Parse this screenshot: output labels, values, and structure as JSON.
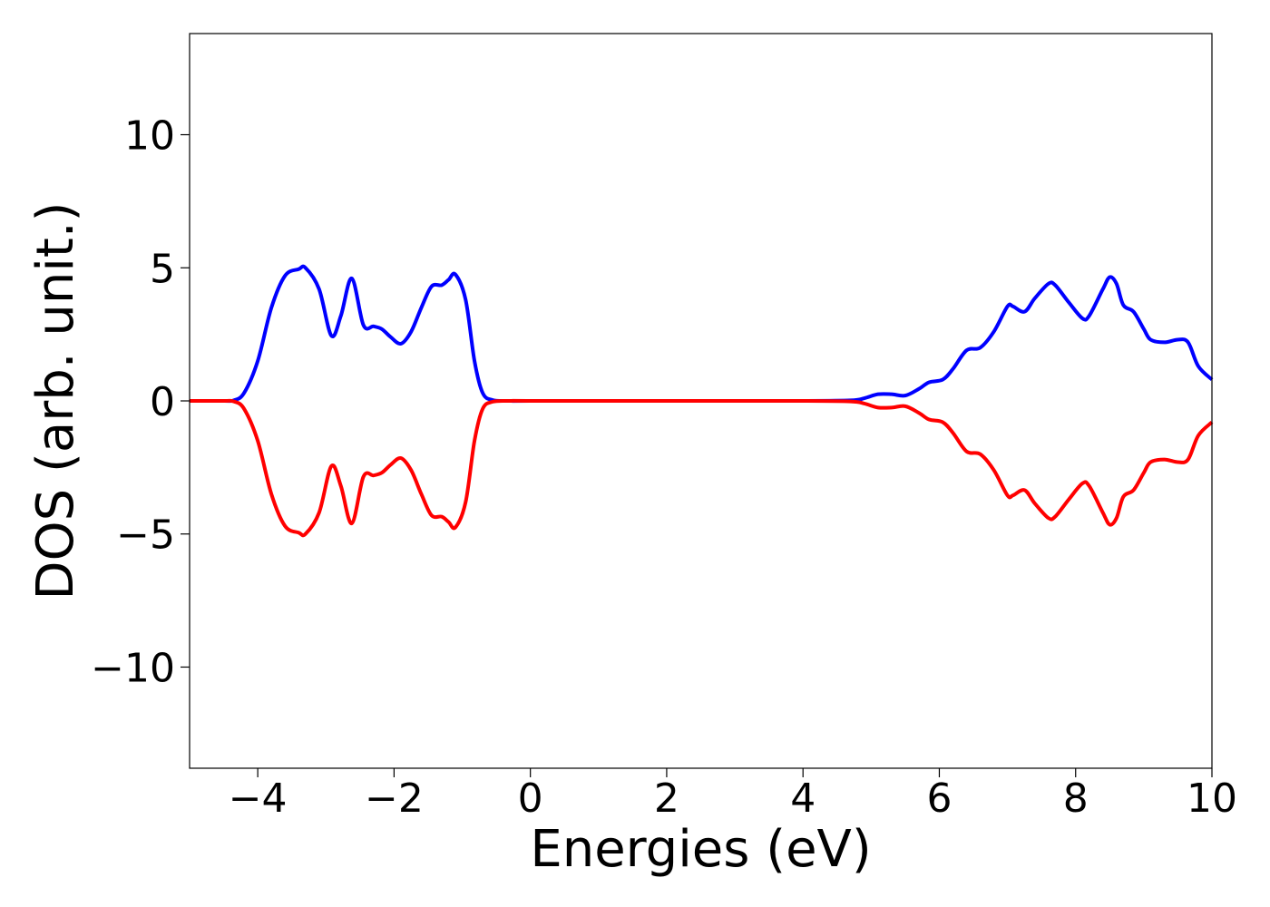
{
  "chart_data": {
    "type": "line",
    "title": "",
    "xlabel": "Energies (eV)",
    "ylabel": "DOS (arb. unit.)",
    "xlim": [
      -5,
      10
    ],
    "ylim": [
      -13.8,
      13.8
    ],
    "xticks": [
      -4,
      -2,
      0,
      2,
      4,
      6,
      8,
      10
    ],
    "yticks": [
      -10,
      -5,
      0,
      5,
      10
    ],
    "xtick_labels": [
      "−4",
      "−2",
      "0",
      "2",
      "4",
      "6",
      "8",
      "10"
    ],
    "ytick_labels": [
      "−10",
      "−5",
      "0",
      "5",
      "10"
    ],
    "grid": false,
    "legend": "none",
    "series": [
      {
        "color": "#0000ff",
        "x": [
          -5.0,
          -4.5,
          -4.35,
          -4.2,
          -4.0,
          -3.8,
          -3.6,
          -3.4,
          -3.3,
          -3.1,
          -2.92,
          -2.78,
          -2.62,
          -2.45,
          -2.3,
          -2.18,
          -2.05,
          -1.9,
          -1.75,
          -1.6,
          -1.45,
          -1.3,
          -1.2,
          -1.1,
          -0.95,
          -0.82,
          -0.7,
          -0.55,
          -0.3,
          0.0,
          2.0,
          4.0,
          4.7,
          4.9,
          5.1,
          5.3,
          5.5,
          5.7,
          5.85,
          6.05,
          6.2,
          6.4,
          6.6,
          6.8,
          7.0,
          7.08,
          7.25,
          7.4,
          7.6,
          7.7,
          7.9,
          8.1,
          8.2,
          8.4,
          8.5,
          8.6,
          8.7,
          8.85,
          9.0,
          9.1,
          9.3,
          9.5,
          9.65,
          9.8,
          10.0
        ],
        "y": [
          0.0,
          0.0,
          0.02,
          0.3,
          1.5,
          3.5,
          4.7,
          4.95,
          5.0,
          4.2,
          2.45,
          3.2,
          4.6,
          2.85,
          2.8,
          2.7,
          2.4,
          2.15,
          2.6,
          3.5,
          4.3,
          4.35,
          4.55,
          4.75,
          3.8,
          1.5,
          0.3,
          0.03,
          0.0,
          0.0,
          0.0,
          0.0,
          0.02,
          0.1,
          0.25,
          0.25,
          0.2,
          0.45,
          0.7,
          0.8,
          1.2,
          1.9,
          2.0,
          2.6,
          3.55,
          3.55,
          3.35,
          3.85,
          4.4,
          4.35,
          3.7,
          3.1,
          3.2,
          4.2,
          4.65,
          4.4,
          3.6,
          3.35,
          2.7,
          2.3,
          2.2,
          2.3,
          2.2,
          1.3,
          0.8
        ]
      },
      {
        "color": "#ff0000",
        "x": [
          -5.0,
          -4.5,
          -4.35,
          -4.2,
          -4.0,
          -3.8,
          -3.6,
          -3.4,
          -3.3,
          -3.1,
          -2.92,
          -2.78,
          -2.62,
          -2.45,
          -2.3,
          -2.18,
          -2.05,
          -1.9,
          -1.75,
          -1.6,
          -1.45,
          -1.3,
          -1.2,
          -1.1,
          -0.95,
          -0.82,
          -0.7,
          -0.55,
          -0.3,
          0.0,
          2.0,
          4.0,
          4.7,
          4.9,
          5.1,
          5.3,
          5.5,
          5.7,
          5.85,
          6.05,
          6.2,
          6.4,
          6.6,
          6.8,
          7.0,
          7.08,
          7.25,
          7.4,
          7.6,
          7.7,
          7.9,
          8.1,
          8.2,
          8.4,
          8.5,
          8.6,
          8.7,
          8.85,
          9.0,
          9.1,
          9.3,
          9.5,
          9.65,
          9.8,
          10.0
        ],
        "y": [
          0.0,
          0.0,
          -0.02,
          -0.3,
          -1.5,
          -3.5,
          -4.7,
          -4.95,
          -5.0,
          -4.2,
          -2.45,
          -3.2,
          -4.6,
          -2.85,
          -2.8,
          -2.7,
          -2.4,
          -2.15,
          -2.6,
          -3.5,
          -4.3,
          -4.35,
          -4.55,
          -4.75,
          -3.8,
          -1.5,
          -0.3,
          -0.03,
          0.0,
          0.0,
          0.0,
          0.0,
          -0.02,
          -0.1,
          -0.25,
          -0.25,
          -0.2,
          -0.45,
          -0.7,
          -0.8,
          -1.2,
          -1.9,
          -2.0,
          -2.6,
          -3.55,
          -3.55,
          -3.35,
          -3.85,
          -4.4,
          -4.35,
          -3.7,
          -3.1,
          -3.2,
          -4.2,
          -4.65,
          -4.4,
          -3.6,
          -3.35,
          -2.7,
          -2.3,
          -2.2,
          -2.3,
          -2.2,
          -1.3,
          -0.8
        ]
      }
    ]
  }
}
